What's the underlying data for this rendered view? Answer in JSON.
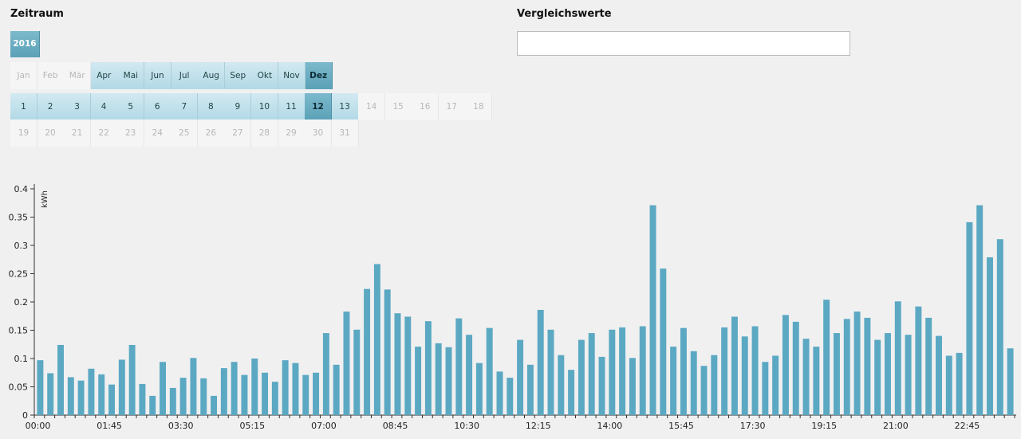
{
  "header": {
    "period_title": "Zeitraum",
    "compare_title": "Vergleichswerte",
    "compare_value": ""
  },
  "colors": {
    "bar": "#5ba8c3",
    "selected": "#5aa1b7",
    "active": "#c3e1eb",
    "inactive": "#f5f5f5"
  },
  "period": {
    "years": [
      {
        "label": "2016",
        "state": "selected"
      }
    ],
    "months": [
      {
        "label": "Jan",
        "state": "inactive"
      },
      {
        "label": "Feb",
        "state": "inactive"
      },
      {
        "label": "Mär",
        "state": "inactive"
      },
      {
        "label": "Apr",
        "state": "active"
      },
      {
        "label": "Mai",
        "state": "active"
      },
      {
        "label": "Jun",
        "state": "active"
      },
      {
        "label": "Jul",
        "state": "active"
      },
      {
        "label": "Aug",
        "state": "active"
      },
      {
        "label": "Sep",
        "state": "active"
      },
      {
        "label": "Okt",
        "state": "active"
      },
      {
        "label": "Nov",
        "state": "active"
      },
      {
        "label": "Dez",
        "state": "selected"
      }
    ],
    "days_row1": [
      {
        "label": "1",
        "state": "active"
      },
      {
        "label": "2",
        "state": "active"
      },
      {
        "label": "3",
        "state": "active"
      },
      {
        "label": "4",
        "state": "active"
      },
      {
        "label": "5",
        "state": "active"
      },
      {
        "label": "6",
        "state": "active"
      },
      {
        "label": "7",
        "state": "active"
      },
      {
        "label": "8",
        "state": "active"
      },
      {
        "label": "9",
        "state": "active"
      },
      {
        "label": "10",
        "state": "active"
      },
      {
        "label": "11",
        "state": "active"
      },
      {
        "label": "12",
        "state": "selected"
      },
      {
        "label": "13",
        "state": "active"
      },
      {
        "label": "14",
        "state": "inactive"
      },
      {
        "label": "15",
        "state": "inactive"
      },
      {
        "label": "16",
        "state": "inactive"
      },
      {
        "label": "17",
        "state": "inactive"
      },
      {
        "label": "18",
        "state": "inactive"
      }
    ],
    "days_row2": [
      {
        "label": "19",
        "state": "inactive"
      },
      {
        "label": "20",
        "state": "inactive"
      },
      {
        "label": "21",
        "state": "inactive"
      },
      {
        "label": "22",
        "state": "inactive"
      },
      {
        "label": "23",
        "state": "inactive"
      },
      {
        "label": "24",
        "state": "inactive"
      },
      {
        "label": "25",
        "state": "inactive"
      },
      {
        "label": "26",
        "state": "inactive"
      },
      {
        "label": "27",
        "state": "inactive"
      },
      {
        "label": "28",
        "state": "inactive"
      },
      {
        "label": "29",
        "state": "inactive"
      },
      {
        "label": "30",
        "state": "inactive"
      },
      {
        "label": "31",
        "state": "inactive"
      }
    ]
  },
  "chart_data": {
    "type": "bar",
    "ylabel": "kWh",
    "ylim": [
      0,
      0.4
    ],
    "yticks": [
      "0",
      "0.05",
      "0.1",
      "0.15",
      "0.2",
      "0.25",
      "0.3",
      "0.35",
      "0.4"
    ],
    "xtick_labels": [
      "00:00",
      "01:45",
      "03:30",
      "05:15",
      "07:00",
      "08:45",
      "10:30",
      "12:15",
      "14:00",
      "15:45",
      "17:30",
      "19:15",
      "21:00",
      "22:45"
    ],
    "interval_minutes": 15,
    "grid": false,
    "values": [
      0.097,
      0.074,
      0.124,
      0.067,
      0.061,
      0.082,
      0.072,
      0.054,
      0.098,
      0.124,
      0.055,
      0.034,
      0.094,
      0.048,
      0.066,
      0.101,
      0.065,
      0.034,
      0.083,
      0.094,
      0.071,
      0.1,
      0.075,
      0.059,
      0.097,
      0.092,
      0.071,
      0.075,
      0.145,
      0.089,
      0.183,
      0.151,
      0.223,
      0.267,
      0.222,
      0.18,
      0.174,
      0.121,
      0.166,
      0.127,
      0.12,
      0.171,
      0.142,
      0.092,
      0.154,
      0.077,
      0.066,
      0.133,
      0.089,
      0.186,
      0.151,
      0.106,
      0.08,
      0.133,
      0.145,
      0.103,
      0.151,
      0.155,
      0.101,
      0.157,
      0.371,
      0.259,
      0.121,
      0.154,
      0.113,
      0.087,
      0.106,
      0.155,
      0.174,
      0.139,
      0.157,
      0.094,
      0.105,
      0.177,
      0.165,
      0.135,
      0.121,
      0.204,
      0.145,
      0.17,
      0.183,
      0.172,
      0.133,
      0.145,
      0.201,
      0.142,
      0.192,
      0.172,
      0.14,
      0.105,
      0.11,
      0.341,
      0.371,
      0.279,
      0.311,
      0.118
    ]
  }
}
